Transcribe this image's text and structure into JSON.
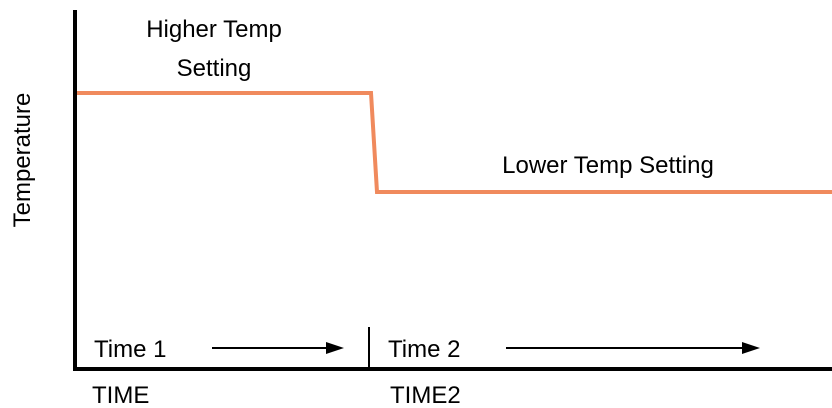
{
  "chart_data": {
    "type": "line",
    "title": "",
    "ylabel": "Temperature",
    "xlabel": "",
    "x_tick_labels": [
      "TIME",
      "TIME2"
    ],
    "series": [
      {
        "values": [
          {
            "x": 0,
            "y": 1
          },
          {
            "x": 1,
            "y": 1
          },
          {
            "x": 1,
            "y": 0
          }
        ]
      }
    ],
    "annotations": {
      "higher_line1": "Higher Temp",
      "higher_line2": "Setting",
      "lower": "Lower Temp Setting",
      "time1": "Time 1",
      "time2": "Time 2"
    },
    "colors": {
      "line": "#f08a5d",
      "axis": "#000000"
    }
  }
}
